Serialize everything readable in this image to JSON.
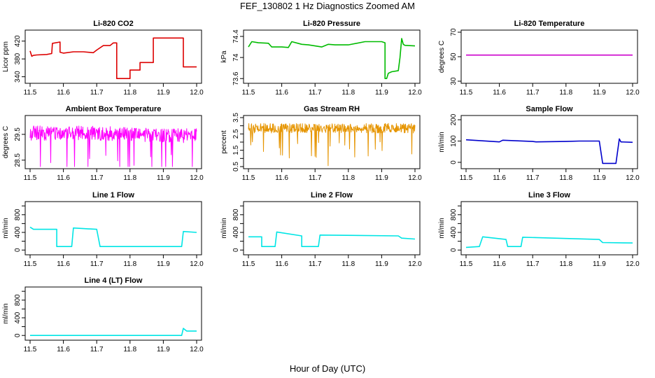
{
  "figure": {
    "title": "FEF_130802  1 Hz Diagnostics Zoomed AM",
    "xlabel": "Hour of Day (UTC)"
  },
  "chart_data": [
    {
      "id": "co2",
      "type": "line",
      "title": "Li-820 CO2",
      "ylabel": "Licor ppm",
      "color": "#dd0000",
      "xlim": [
        11.5,
        12.0
      ],
      "ylim": [
        330,
        440
      ],
      "yticks": [
        340,
        380,
        420
      ],
      "xticks": [
        "11.5",
        "11.6",
        "11.7",
        "11.8",
        "11.9",
        "12.0"
      ],
      "series": [
        {
          "x": [
            11.5,
            11.505,
            11.51,
            11.52,
            11.55,
            11.565,
            11.567,
            11.59,
            11.59,
            11.6,
            11.6,
            11.63,
            11.66,
            11.69,
            11.7,
            11.72,
            11.74,
            11.75,
            11.76,
            11.76,
            11.8,
            11.8,
            11.83,
            11.83,
            11.87,
            11.87,
            11.96,
            11.96,
            12.0
          ],
          "y": [
            398,
            386,
            388,
            389,
            390,
            392,
            415,
            418,
            395,
            393,
            393,
            396,
            396,
            394,
            400,
            410,
            410,
            416,
            416,
            336,
            336,
            355,
            355,
            372,
            372,
            427,
            427,
            362,
            362
          ]
        }
      ]
    },
    {
      "id": "pressure",
      "type": "line",
      "title": "Li-820 Pressure",
      "ylabel": "kPa",
      "color": "#00bb00",
      "xlim": [
        11.5,
        12.0
      ],
      "ylim": [
        73.55,
        74.48
      ],
      "yticks": [
        73.6,
        74.0,
        74.4
      ],
      "xticks": [
        "11.5",
        "11.6",
        "11.7",
        "11.8",
        "11.9",
        "12.0"
      ],
      "series": [
        {
          "x": [
            11.5,
            11.51,
            11.53,
            11.56,
            11.57,
            11.6,
            11.62,
            11.63,
            11.66,
            11.68,
            11.7,
            11.72,
            11.74,
            11.76,
            11.8,
            11.85,
            11.9,
            11.91,
            11.91,
            11.915,
            11.92,
            11.93,
            11.95,
            11.955,
            11.96,
            11.965,
            11.97,
            12.0
          ],
          "y": [
            74.2,
            74.3,
            74.28,
            74.27,
            74.2,
            74.2,
            74.19,
            74.3,
            74.25,
            74.24,
            74.22,
            74.2,
            74.25,
            74.24,
            74.24,
            74.3,
            74.3,
            74.28,
            73.6,
            73.6,
            73.7,
            73.73,
            73.75,
            74.0,
            74.36,
            74.25,
            74.23,
            74.22
          ]
        }
      ]
    },
    {
      "id": "licor_temp",
      "type": "line",
      "title": "Li-820 Temperature",
      "ylabel": "degrees C",
      "color": "#cc00cc",
      "xlim": [
        11.5,
        12.0
      ],
      "ylim": [
        30,
        70
      ],
      "yticks": [
        30,
        50,
        70
      ],
      "xticks": [
        "11.5",
        "11.6",
        "11.7",
        "11.8",
        "11.9",
        "12.0"
      ],
      "series": [
        {
          "x": [
            11.5,
            12.0
          ],
          "y": [
            51.3,
            51.3
          ]
        }
      ]
    },
    {
      "id": "box_temp",
      "type": "line",
      "title": "Ambient Box Temperature",
      "ylabel": "degrees C",
      "color": "#ff00ff",
      "xlim": [
        11.5,
        12.0
      ],
      "ylim": [
        28.25,
        30.15
      ],
      "yticks": [
        28.5,
        29.5
      ],
      "xticks": [
        "11.5",
        "11.6",
        "11.7",
        "11.8",
        "11.9",
        "12.0"
      ],
      "series": [
        {
          "x": [
            11.5,
            11.6,
            11.7,
            11.8,
            11.9,
            12.0
          ],
          "y": [
            29.55,
            29.55,
            29.55,
            29.5,
            29.45,
            29.45
          ]
        }
      ],
      "noise": 0.28
    },
    {
      "id": "rh",
      "type": "line",
      "title": "Gas Stream RH",
      "ylabel": "percent",
      "color": "#e69500",
      "xlim": [
        11.5,
        12.0
      ],
      "ylim": [
        0.5,
        3.5
      ],
      "yticks": [
        0.5,
        1.5,
        2.5,
        3.5
      ],
      "yticks_minor": [
        1.0,
        2.0,
        3.0
      ],
      "xticks": [
        "11.5",
        "11.6",
        "11.7",
        "11.8",
        "11.9",
        "12.0"
      ],
      "series": [
        {
          "x": [
            11.5,
            12.0
          ],
          "y": [
            2.85,
            2.85
          ]
        }
      ],
      "noise": 0.3
    },
    {
      "id": "sample_flow",
      "type": "line",
      "title": "Sample Flow",
      "ylabel": "ml/min",
      "color": "#0000cc",
      "xlim": [
        11.5,
        12.0
      ],
      "ylim": [
        -20,
        210
      ],
      "yticks": [
        0,
        100,
        200
      ],
      "xticks": [
        "11.5",
        "11.6",
        "11.7",
        "11.8",
        "11.9",
        "12.0"
      ],
      "series": [
        {
          "x": [
            11.5,
            11.6,
            11.61,
            11.7,
            11.71,
            11.8,
            11.84,
            11.9,
            11.91,
            11.95,
            11.95,
            11.96,
            11.965,
            12.0
          ],
          "y": [
            106,
            96,
            104,
            98,
            96,
            98,
            100,
            100,
            -5,
            -5,
            -5,
            110,
            96,
            94
          ]
        }
      ]
    },
    {
      "id": "line1",
      "type": "line",
      "title": "Line 1 Flow",
      "ylabel": "ml/min",
      "color": "#00e5e5",
      "xlim": [
        11.5,
        12.0
      ],
      "ylim": [
        -60,
        1050
      ],
      "yticks": [
        0,
        400,
        800
      ],
      "yticks_minor": [
        200,
        600,
        1000
      ],
      "xticks": [
        "11.5",
        "11.6",
        "11.7",
        "11.8",
        "11.9",
        "12.0"
      ],
      "series": [
        {
          "x": [
            11.5,
            11.51,
            11.58,
            11.58,
            11.625,
            11.63,
            11.7,
            11.71,
            11.955,
            11.96,
            12.0
          ],
          "y": [
            520,
            470,
            470,
            80,
            80,
            500,
            470,
            80,
            80,
            420,
            400
          ]
        }
      ]
    },
    {
      "id": "line2",
      "type": "line",
      "title": "Line 2 Flow",
      "ylabel": "ml/min",
      "color": "#00e5e5",
      "xlim": [
        11.5,
        12.0
      ],
      "ylim": [
        -60,
        1050
      ],
      "yticks": [
        0,
        400,
        800
      ],
      "yticks_minor": [
        200,
        600,
        1000
      ],
      "xticks": [
        "11.5",
        "11.6",
        "11.7",
        "11.8",
        "11.9",
        "12.0"
      ],
      "series": [
        {
          "x": [
            11.5,
            11.54,
            11.54,
            11.58,
            11.585,
            11.66,
            11.66,
            11.71,
            11.715,
            11.95,
            11.96,
            12.0
          ],
          "y": [
            300,
            300,
            80,
            80,
            410,
            320,
            80,
            80,
            340,
            320,
            270,
            250
          ]
        }
      ]
    },
    {
      "id": "line3",
      "type": "line",
      "title": "Line 3 Flow",
      "ylabel": "ml/min",
      "color": "#00e5e5",
      "xlim": [
        11.5,
        12.0
      ],
      "ylim": [
        -60,
        1050
      ],
      "yticks": [
        0,
        400,
        800
      ],
      "yticks_minor": [
        200,
        600,
        1000
      ],
      "xticks": [
        "11.5",
        "11.6",
        "11.7",
        "11.8",
        "11.9",
        "12.0"
      ],
      "series": [
        {
          "x": [
            11.5,
            11.54,
            11.55,
            11.62,
            11.625,
            11.665,
            11.67,
            11.9,
            11.91,
            12.0
          ],
          "y": [
            60,
            80,
            300,
            240,
            80,
            80,
            290,
            240,
            170,
            160
          ]
        }
      ]
    },
    {
      "id": "line4",
      "type": "line",
      "title": "Line 4 (LT) Flow",
      "ylabel": "ml/min",
      "color": "#00e5e5",
      "xlim": [
        11.5,
        12.0
      ],
      "ylim": [
        -60,
        1050
      ],
      "yticks": [
        0,
        400,
        800
      ],
      "yticks_minor": [
        200,
        600,
        1000
      ],
      "xticks": [
        "11.5",
        "11.6",
        "11.7",
        "11.8",
        "11.9",
        "12.0"
      ],
      "series": [
        {
          "x": [
            11.5,
            11.955,
            11.96,
            11.97,
            12.0
          ],
          "y": [
            0,
            0,
            160,
            100,
            100
          ]
        }
      ]
    }
  ]
}
